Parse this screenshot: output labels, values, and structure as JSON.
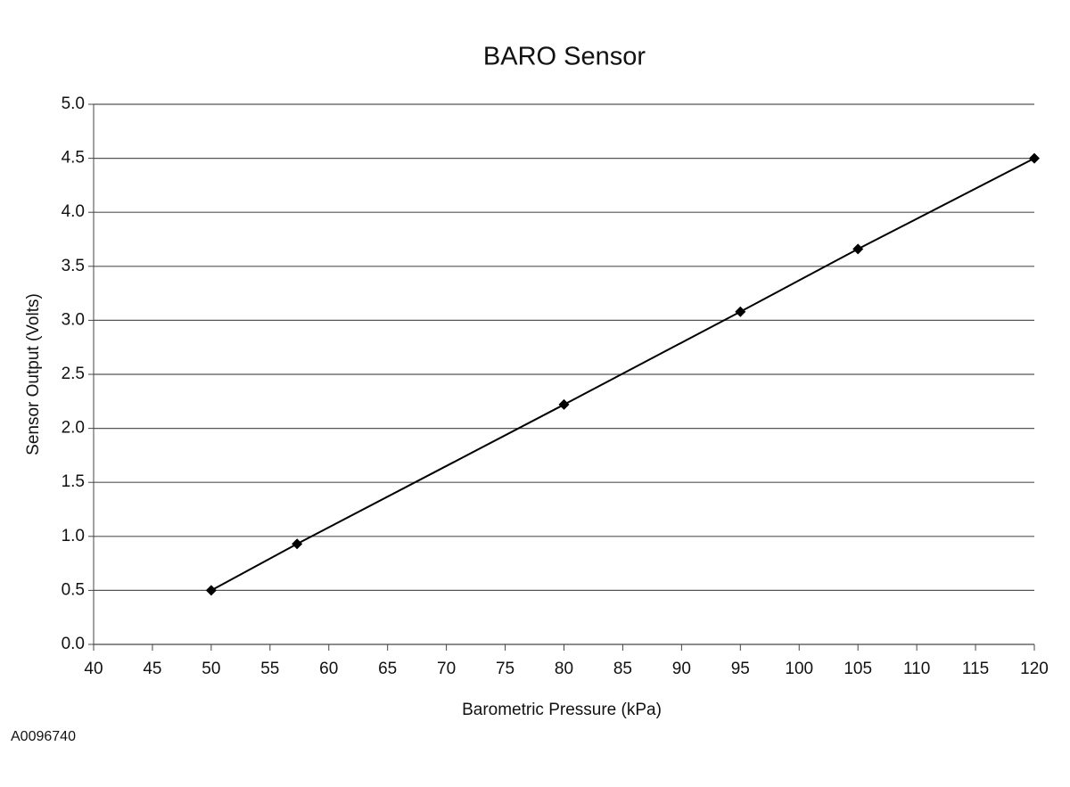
{
  "chart_data": {
    "type": "line",
    "title": "BARO Sensor",
    "x_label": "Barometric Pressure (kPa)",
    "y_label": "Sensor Output (Volts)",
    "annotations": [
      "A0096740"
    ],
    "x": [
      50,
      57.3,
      80,
      95,
      105,
      120
    ],
    "values": [
      0.5,
      0.93,
      2.22,
      3.08,
      3.66,
      4.5
    ],
    "color": "#000000",
    "xlim": [
      40,
      120
    ],
    "xticks": [
      40,
      45,
      50,
      55,
      60,
      65,
      70,
      75,
      80,
      85,
      90,
      95,
      100,
      105,
      110,
      115,
      120
    ],
    "ylim": [
      0,
      5
    ],
    "yticks": [
      {
        "value": 0,
        "label": "0.0"
      },
      0.5,
      {
        "value": 1,
        "label": "1.0"
      },
      1.5,
      {
        "value": 2,
        "label": "2.0"
      },
      2.5,
      {
        "value": 3,
        "label": "3.0"
      },
      3.5,
      {
        "value": 4,
        "label": "4.0"
      },
      4.5,
      {
        "value": 5,
        "label": "5.0"
      }
    ],
    "grid": true,
    "marker": "diamond"
  }
}
